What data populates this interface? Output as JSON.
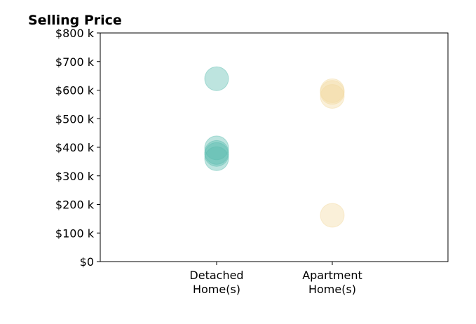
{
  "chart_data": {
    "type": "scatter",
    "title": "Selling Price",
    "xlabel": "",
    "ylabel": "",
    "categories": [
      "Detached\nHome(s)",
      "Apartment\nHome(s)"
    ],
    "ylim": [
      0,
      800000
    ],
    "yticks": [
      {
        "value": 0,
        "label": "$0"
      },
      {
        "value": 100000,
        "label": "$100 k"
      },
      {
        "value": 200000,
        "label": "$200 k"
      },
      {
        "value": 300000,
        "label": "$300 k"
      },
      {
        "value": 400000,
        "label": "$400 k"
      },
      {
        "value": 500000,
        "label": "$500 k"
      },
      {
        "value": 600000,
        "label": "$600 k"
      },
      {
        "value": 700000,
        "label": "$700 k"
      },
      {
        "value": 800000,
        "label": "$800 k"
      }
    ],
    "grid": false,
    "series": [
      {
        "category_index": 0,
        "color": "#5bbcb0",
        "values": [
          640000,
          398000,
          382000,
          375000,
          360000
        ]
      },
      {
        "category_index": 1,
        "color": "#f2d9a0",
        "values": [
          598000,
          592000,
          578000,
          162000
        ]
      }
    ]
  }
}
